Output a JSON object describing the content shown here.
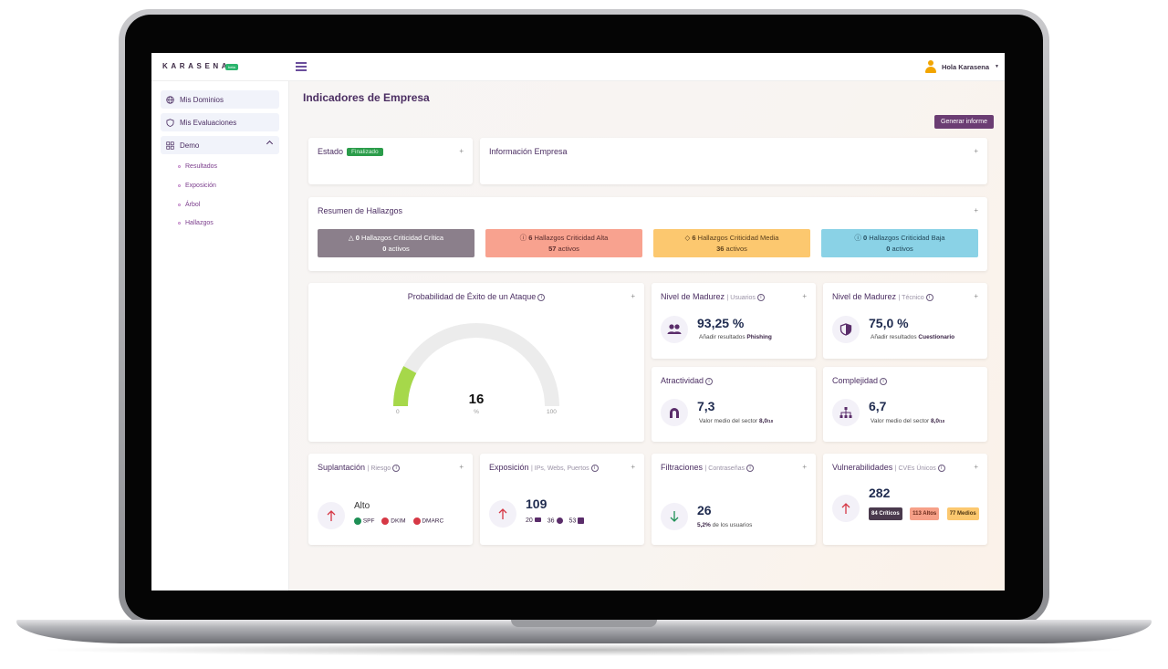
{
  "app": {
    "logo_text": "KARASENA",
    "logo_badge": "beta",
    "user_greeting": "Hola Karasena"
  },
  "sidebar": {
    "items": [
      {
        "label": "Mis Dominios",
        "icon": "globe-icon"
      },
      {
        "label": "Mis Evaluaciones",
        "icon": "shield-icon"
      },
      {
        "label": "Demo",
        "icon": "grid-icon",
        "expanded": true
      }
    ],
    "subitems": [
      "Resultados",
      "Exposición",
      "Árbol",
      "Hallazgos"
    ]
  },
  "main": {
    "title": "Indicadores de Empresa",
    "report_button": "Generar informe",
    "estado": {
      "title": "Estado",
      "badge": "Finalizado"
    },
    "info_empresa": {
      "title": "Información Empresa"
    },
    "resumen": {
      "title": "Resumen de Hallazgos",
      "severities": [
        {
          "count": "0",
          "label": "Hallazgos Criticidad Crítica",
          "active": "0",
          "active_suffix": "activos",
          "icon": "warning-triangle-icon",
          "color": "#8b7f8b"
        },
        {
          "count": "6",
          "label": "Hallazgos Criticidad Alta",
          "active": "57",
          "active_suffix": "activos",
          "icon": "info-circle-icon",
          "color": "#f8a28f"
        },
        {
          "count": "6",
          "label": "Hallazgos Criticidad Media",
          "active": "36",
          "active_suffix": "activos",
          "icon": "diamond-icon",
          "color": "#fcc86f"
        },
        {
          "count": "0",
          "label": "Hallazgos Criticidad Baja",
          "active": "0",
          "active_suffix": "activos",
          "icon": "info-circle-icon",
          "color": "#8ad2e6"
        }
      ]
    },
    "probabilidad": {
      "title": "Probabilidad de Éxito de un Ataque",
      "value": 16,
      "value_label": "16",
      "min": "0",
      "max": "100",
      "unit": "%",
      "gauge_color": "#a6d84a"
    },
    "madurez_usuarios": {
      "title": "Nivel de Madurez",
      "sub": "| Usuarios",
      "value": "93,25 %",
      "note": "Añadir resultados",
      "note_bold": "Phishing",
      "icon": "users-icon"
    },
    "madurez_tecnico": {
      "title": "Nivel de Madurez",
      "sub": "| Técnico",
      "value": "75,0 %",
      "note": "Añadir resultados",
      "note_bold": "Cuestionario",
      "icon": "shield-half-icon"
    },
    "atractividad": {
      "title": "Atractividad",
      "value": "7,3",
      "note": "Valor medio del sector",
      "note_bold": "8,0",
      "note_small": "/10",
      "icon": "magnet-icon"
    },
    "complejidad": {
      "title": "Complejidad",
      "value": "6,7",
      "note": "Valor medio del sector",
      "note_bold": "8,0",
      "note_small": "/10",
      "icon": "hierarchy-icon"
    },
    "suplantacion": {
      "title": "Suplantación",
      "sub": "| Riesgo",
      "value": "Alto",
      "checks": [
        {
          "label": "SPF",
          "color": "#1e8f55"
        },
        {
          "label": "DKIM",
          "color": "#d63845"
        },
        {
          "label": "DMARC",
          "color": "#d63845"
        }
      ],
      "icon": "arrow-up-icon"
    },
    "exposicion": {
      "title": "Exposición",
      "sub": "| IPs, Webs, Puertos",
      "value": "109",
      "breakdown": [
        {
          "value": "20",
          "icon": "ip-icon"
        },
        {
          "value": "36",
          "icon": "web-icon"
        },
        {
          "value": "53",
          "icon": "port-icon"
        }
      ],
      "icon": "arrow-up-icon"
    },
    "filtraciones": {
      "title": "Filtraciones",
      "sub": "| Contraseñas",
      "value": "26",
      "note_bold": "5,2%",
      "note": "de los usuarios",
      "icon": "arrow-down-icon"
    },
    "vulnerabilidades": {
      "title": "Vulnerabilidades",
      "sub": "| CVEs Únicos",
      "value": "282",
      "tags": [
        {
          "label": "84 Críticos",
          "color": "#4a3a4d",
          "text": "#ffffff"
        },
        {
          "label": "113 Altos",
          "color": "#f6a088",
          "text": "#6a2a1a"
        },
        {
          "label": "77 Medios",
          "color": "#fcc86f",
          "text": "#4e3512"
        }
      ],
      "icon": "arrow-up-icon"
    }
  }
}
